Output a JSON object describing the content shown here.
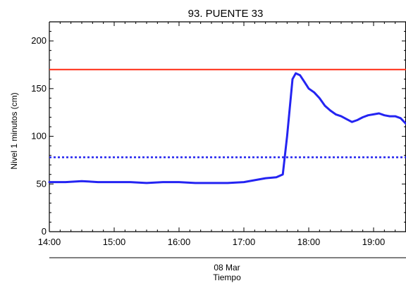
{
  "chart_data": {
    "type": "line",
    "title": "93. PUENTE 33",
    "ylabel": "Nivel 1 minutos (cm)",
    "xlabel_date": "08 Mar",
    "xlabel": "Tiempo",
    "xlim": [
      "14:00",
      "19:30"
    ],
    "ylim": [
      0,
      220
    ],
    "x_ticks": [
      "14:00",
      "15:00",
      "16:00",
      "17:00",
      "18:00",
      "19:00"
    ],
    "y_ticks": [
      0,
      50,
      100,
      150,
      200
    ],
    "grid": false,
    "thresholds": [
      {
        "value": 170,
        "color": "#ff2a12",
        "style": "solid"
      },
      {
        "value": 78,
        "color": "#2222ee",
        "style": "dotted"
      }
    ],
    "series": [
      {
        "color": "#2424f2",
        "x": [
          "14:00",
          "14:15",
          "14:30",
          "14:45",
          "15:00",
          "15:15",
          "15:30",
          "15:45",
          "16:00",
          "16:15",
          "16:30",
          "16:45",
          "17:00",
          "17:10",
          "17:20",
          "17:30",
          "17:36",
          "17:40",
          "17:45",
          "17:48",
          "17:52",
          "17:56",
          "18:00",
          "18:05",
          "18:10",
          "18:15",
          "18:20",
          "18:25",
          "18:30",
          "18:35",
          "18:40",
          "18:45",
          "18:50",
          "18:55",
          "19:00",
          "19:05",
          "19:10",
          "19:15",
          "19:20",
          "19:25",
          "19:30"
        ],
        "values": [
          52,
          52,
          53,
          52,
          52,
          52,
          51,
          52,
          52,
          51,
          51,
          51,
          52,
          54,
          56,
          57,
          60,
          100,
          160,
          166,
          164,
          157,
          150,
          146,
          140,
          132,
          127,
          123,
          121,
          118,
          115,
          117,
          120,
          122,
          123,
          124,
          122,
          121,
          121,
          119,
          113
        ]
      }
    ]
  }
}
